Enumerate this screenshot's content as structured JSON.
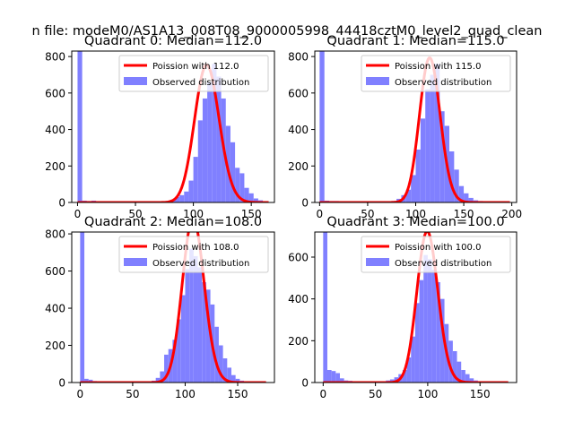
{
  "figure": {
    "suptitle": "n file: modeM0/AS1A13_008T08_9000005998_44418cztM0_level2_quad_clean"
  },
  "colors": {
    "hist": "#8080ff",
    "curve": "#ff0000",
    "axes": "#000000",
    "background": "#ffffff"
  },
  "chart_data": [
    {
      "type": "bar",
      "title": "Quadrant 0: Median=112.0",
      "xlim": [
        -5,
        170
      ],
      "ylim": [
        0,
        830
      ],
      "xticks": [
        0,
        50,
        100,
        150
      ],
      "yticks": [
        0,
        200,
        400,
        600,
        800
      ],
      "legend_position": "top-right",
      "legend": [
        "Poission with 112.0",
        "Observed distribution"
      ],
      "median": 112.0,
      "bin_width": 4,
      "hist": [
        [
          0,
          830
        ],
        [
          4,
          10
        ],
        [
          8,
          8
        ],
        [
          12,
          10
        ],
        [
          16,
          6
        ],
        [
          20,
          7
        ],
        [
          24,
          6
        ],
        [
          28,
          5
        ],
        [
          32,
          5
        ],
        [
          36,
          5
        ],
        [
          40,
          5
        ],
        [
          44,
          5
        ],
        [
          48,
          5
        ],
        [
          52,
          5
        ],
        [
          56,
          5
        ],
        [
          60,
          5
        ],
        [
          64,
          6
        ],
        [
          68,
          6
        ],
        [
          72,
          6
        ],
        [
          76,
          8
        ],
        [
          80,
          15
        ],
        [
          84,
          30
        ],
        [
          88,
          40
        ],
        [
          92,
          60
        ],
        [
          96,
          120
        ],
        [
          100,
          250
        ],
        [
          104,
          450
        ],
        [
          108,
          570
        ],
        [
          112,
          660
        ],
        [
          116,
          760
        ],
        [
          120,
          690
        ],
        [
          124,
          570
        ],
        [
          128,
          420
        ],
        [
          132,
          330
        ],
        [
          136,
          190
        ],
        [
          140,
          160
        ],
        [
          144,
          80
        ],
        [
          148,
          50
        ],
        [
          152,
          22
        ],
        [
          156,
          12
        ],
        [
          160,
          6
        ]
      ],
      "curve_x_range": [
        0,
        165
      ]
    },
    {
      "type": "bar",
      "title": "Quadrant 1: Median=115.0",
      "xlim": [
        -5,
        205
      ],
      "ylim": [
        0,
        830
      ],
      "xticks": [
        0,
        50,
        100,
        150,
        200
      ],
      "yticks": [
        0,
        200,
        400,
        600,
        800
      ],
      "legend_position": "top-right",
      "legend": [
        "Poission with 115.0",
        "Observed distribution"
      ],
      "median": 115.0,
      "bin_width": 5,
      "hist": [
        [
          0,
          830
        ],
        [
          5,
          10
        ],
        [
          10,
          8
        ],
        [
          15,
          8
        ],
        [
          20,
          6
        ],
        [
          25,
          6
        ],
        [
          30,
          5
        ],
        [
          35,
          5
        ],
        [
          40,
          5
        ],
        [
          45,
          5
        ],
        [
          50,
          5
        ],
        [
          55,
          5
        ],
        [
          60,
          5
        ],
        [
          65,
          5
        ],
        [
          70,
          5
        ],
        [
          75,
          8
        ],
        [
          80,
          20
        ],
        [
          85,
          40
        ],
        [
          90,
          70
        ],
        [
          95,
          150
        ],
        [
          100,
          290
        ],
        [
          105,
          460
        ],
        [
          110,
          620
        ],
        [
          115,
          700
        ],
        [
          120,
          760
        ],
        [
          125,
          500
        ],
        [
          130,
          420
        ],
        [
          135,
          280
        ],
        [
          140,
          180
        ],
        [
          145,
          90
        ],
        [
          150,
          50
        ],
        [
          155,
          25
        ],
        [
          160,
          12
        ],
        [
          165,
          8
        ],
        [
          170,
          6
        ],
        [
          175,
          5
        ]
      ],
      "curve_x_range": [
        0,
        198
      ]
    },
    {
      "type": "bar",
      "title": "Quadrant 2: Median=108.0",
      "xlim": [
        -8,
        185
      ],
      "ylim": [
        0,
        810
      ],
      "xticks": [
        0,
        50,
        100,
        150
      ],
      "yticks": [
        0,
        200,
        400,
        600,
        800
      ],
      "legend_position": "top-right",
      "legend": [
        "Poission with 108.0",
        "Observed distribution"
      ],
      "median": 108.0,
      "bin_width": 4,
      "hist": [
        [
          0,
          810
        ],
        [
          4,
          20
        ],
        [
          8,
          15
        ],
        [
          12,
          8
        ],
        [
          16,
          6
        ],
        [
          20,
          6
        ],
        [
          24,
          5
        ],
        [
          28,
          5
        ],
        [
          32,
          5
        ],
        [
          36,
          5
        ],
        [
          40,
          5
        ],
        [
          44,
          5
        ],
        [
          48,
          5
        ],
        [
          52,
          5
        ],
        [
          56,
          5
        ],
        [
          60,
          5
        ],
        [
          64,
          6
        ],
        [
          68,
          10
        ],
        [
          72,
          25
        ],
        [
          76,
          60
        ],
        [
          80,
          150
        ],
        [
          84,
          180
        ],
        [
          88,
          230
        ],
        [
          92,
          340
        ],
        [
          96,
          470
        ],
        [
          100,
          610
        ],
        [
          104,
          720
        ],
        [
          108,
          680
        ],
        [
          112,
          620
        ],
        [
          116,
          540
        ],
        [
          120,
          500
        ],
        [
          124,
          420
        ],
        [
          128,
          300
        ],
        [
          132,
          200
        ],
        [
          136,
          130
        ],
        [
          140,
          80
        ],
        [
          144,
          40
        ],
        [
          148,
          20
        ],
        [
          152,
          10
        ],
        [
          156,
          6
        ]
      ],
      "curve_x_range": [
        0,
        177
      ]
    },
    {
      "type": "bar",
      "title": "Quadrant 3: Median=100.0",
      "xlim": [
        -8,
        185
      ],
      "ylim": [
        0,
        720
      ],
      "xticks": [
        0,
        50,
        100,
        150
      ],
      "yticks": [
        0,
        200,
        400,
        600
      ],
      "legend_position": "top-right",
      "legend": [
        "Poission with 100.0",
        "Observed distribution"
      ],
      "median": 100.0,
      "bin_width": 4,
      "hist": [
        [
          0,
          720
        ],
        [
          4,
          60
        ],
        [
          8,
          55
        ],
        [
          12,
          45
        ],
        [
          16,
          20
        ],
        [
          20,
          10
        ],
        [
          24,
          8
        ],
        [
          28,
          6
        ],
        [
          32,
          5
        ],
        [
          36,
          5
        ],
        [
          40,
          5
        ],
        [
          44,
          5
        ],
        [
          48,
          5
        ],
        [
          52,
          5
        ],
        [
          56,
          6
        ],
        [
          60,
          10
        ],
        [
          64,
          15
        ],
        [
          68,
          25
        ],
        [
          72,
          40
        ],
        [
          76,
          60
        ],
        [
          80,
          120
        ],
        [
          84,
          220
        ],
        [
          88,
          380
        ],
        [
          92,
          490
        ],
        [
          96,
          610
        ],
        [
          100,
          590
        ],
        [
          104,
          540
        ],
        [
          108,
          480
        ],
        [
          112,
          400
        ],
        [
          116,
          280
        ],
        [
          120,
          200
        ],
        [
          124,
          150
        ],
        [
          128,
          100
        ],
        [
          132,
          60
        ],
        [
          136,
          40
        ],
        [
          140,
          20
        ],
        [
          144,
          10
        ]
      ],
      "curve_x_range": [
        0,
        177
      ]
    }
  ]
}
